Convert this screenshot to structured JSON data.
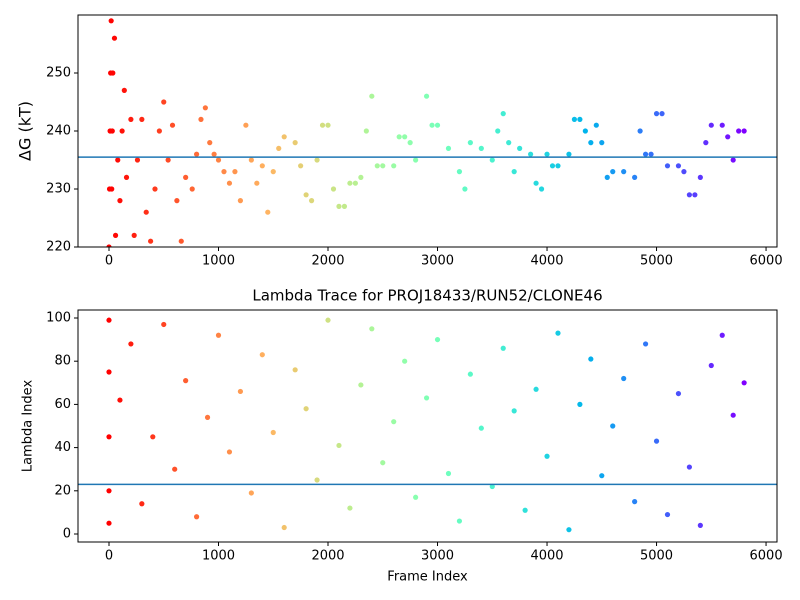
{
  "chart_data": [
    {
      "type": "scatter",
      "ylabel": "ΔG (kT)",
      "colormap": "rainbow",
      "xlim": [
        -283,
        6100
      ],
      "ylim": [
        220,
        260
      ],
      "xticks": [
        0,
        1000,
        2000,
        3000,
        4000,
        5000,
        6000
      ],
      "yticks": [
        220,
        230,
        240,
        250
      ],
      "hline": 235.5,
      "hline_color": "#1f77b4",
      "x": [
        0,
        5,
        10,
        15,
        20,
        25,
        30,
        35,
        50,
        60,
        80,
        100,
        120,
        140,
        160,
        200,
        230,
        260,
        300,
        340,
        380,
        420,
        460,
        500,
        540,
        580,
        620,
        660,
        700,
        760,
        800,
        840,
        880,
        920,
        960,
        1000,
        1050,
        1100,
        1150,
        1200,
        1250,
        1300,
        1350,
        1400,
        1450,
        1500,
        1550,
        1600,
        1700,
        1750,
        1800,
        1850,
        1900,
        1950,
        2000,
        2050,
        2100,
        2150,
        2200,
        2250,
        2300,
        2350,
        2400,
        2450,
        2500,
        2600,
        2650,
        2700,
        2750,
        2800,
        2900,
        2950,
        3000,
        3100,
        3200,
        3250,
        3300,
        3400,
        3500,
        3550,
        3600,
        3650,
        3700,
        3750,
        3850,
        3900,
        3950,
        4000,
        4050,
        4100,
        4200,
        4250,
        4300,
        4350,
        4400,
        4450,
        4500,
        4550,
        4600,
        4700,
        4800,
        4850,
        4900,
        4950,
        5000,
        5050,
        5100,
        5200,
        5250,
        5300,
        5350,
        5400,
        5450,
        5500,
        5600,
        5650,
        5700,
        5750,
        5800
      ],
      "values": [
        220,
        230,
        240,
        250,
        259,
        230,
        240,
        250,
        256,
        222,
        235,
        228,
        240,
        247,
        232,
        242,
        222,
        235,
        242,
        226,
        221,
        230,
        240,
        245,
        235,
        241,
        228,
        221,
        232,
        230,
        236,
        242,
        244,
        238,
        236,
        235,
        233,
        231,
        233,
        228,
        241,
        235,
        231,
        234,
        226,
        233,
        237,
        239,
        238,
        234,
        229,
        228,
        235,
        241,
        241,
        230,
        227,
        227,
        231,
        231,
        232,
        240,
        246,
        234,
        234,
        234,
        239,
        239,
        238,
        235,
        246,
        241,
        241,
        237,
        233,
        230,
        238,
        237,
        235,
        240,
        243,
        238,
        233,
        237,
        236,
        231,
        230,
        236,
        234,
        234,
        236,
        242,
        242,
        240,
        238,
        241,
        238,
        232,
        233,
        233,
        232,
        240,
        236,
        236,
        243,
        243,
        234,
        234,
        233,
        229,
        229,
        232,
        238,
        241,
        241,
        239,
        235,
        240,
        240
      ]
    },
    {
      "type": "scatter",
      "title": "Lambda Trace for PROJ18433/RUN52/CLONE46",
      "xlabel": "Frame Index",
      "ylabel": "Lambda Index",
      "colormap": "rainbow",
      "xlim": [
        -283,
        6100
      ],
      "ylim": [
        -3.7,
        103.7
      ],
      "xticks": [
        0,
        1000,
        2000,
        3000,
        4000,
        5000,
        6000
      ],
      "yticks": [
        0,
        20,
        40,
        60,
        80,
        100
      ],
      "hline": 23,
      "hline_color": "#1f77b4",
      "x": [
        0,
        0,
        0,
        0,
        0,
        100,
        200,
        300,
        400,
        500,
        600,
        700,
        800,
        900,
        1000,
        1100,
        1200,
        1300,
        1400,
        1500,
        1600,
        1700,
        1800,
        1900,
        2000,
        2100,
        2200,
        2300,
        2400,
        2500,
        2600,
        2700,
        2800,
        2900,
        3000,
        3100,
        3200,
        3300,
        3400,
        3500,
        3600,
        3700,
        3800,
        3900,
        4000,
        4100,
        4200,
        4300,
        4400,
        4500,
        4600,
        4700,
        4800,
        4900,
        5000,
        5100,
        5200,
        5300,
        5400,
        5500,
        5600,
        5700,
        5800
      ],
      "values": [
        5,
        20,
        45,
        75,
        99,
        62,
        88,
        14,
        45,
        97,
        30,
        71,
        8,
        54,
        92,
        38,
        66,
        19,
        83,
        47,
        3,
        76,
        58,
        25,
        99,
        41,
        12,
        69,
        95,
        33,
        52,
        80,
        17,
        63,
        90,
        28,
        6,
        74,
        49,
        22,
        86,
        57,
        11,
        67,
        36,
        93,
        2,
        60,
        81,
        27,
        50,
        72,
        15,
        88,
        43,
        9,
        65,
        31,
        4,
        78,
        92,
        55,
        70
      ]
    }
  ]
}
